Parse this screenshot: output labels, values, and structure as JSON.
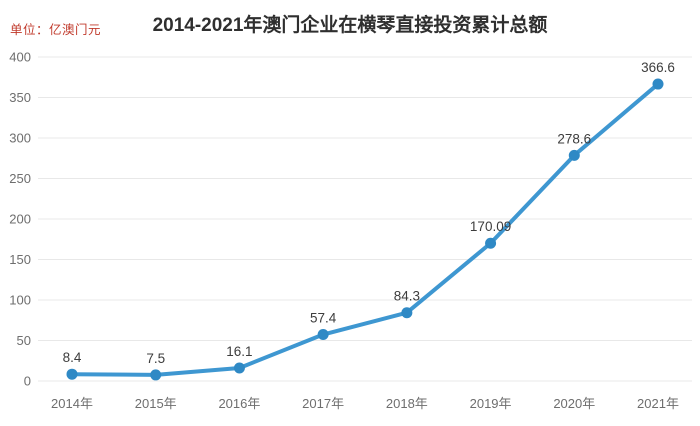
{
  "header": {
    "unit_label": "单位：亿澳门元",
    "unit_color": "#c0392b",
    "title": "2014-2021年澳门企业在横琴直接投资累计总额"
  },
  "chart_data": {
    "type": "line",
    "title": "2014-2021年澳门企业在横琴直接投资累计总额",
    "xlabel": "",
    "ylabel": "单位：亿澳门元",
    "categories": [
      "2014年",
      "2015年",
      "2016年",
      "2017年",
      "2018年",
      "2019年",
      "2020年",
      "2021年"
    ],
    "values": [
      8.4,
      7.5,
      16.1,
      57.4,
      84.3,
      170.09,
      278.6,
      366.6
    ],
    "point_labels": [
      "8.4",
      "7.5",
      "16.1",
      "57.4",
      "84.3",
      "170.09",
      "278.6",
      "366.6"
    ],
    "ylim": [
      0,
      400
    ],
    "ytick_step": 50,
    "grid": true,
    "legend": "none",
    "colors": {
      "line": "#3e97d1",
      "marker": "#2f89c5",
      "grid": "#e8e8e8",
      "axis_text": "#6e6e6e",
      "point_label_text": "#3d3d3d"
    }
  }
}
